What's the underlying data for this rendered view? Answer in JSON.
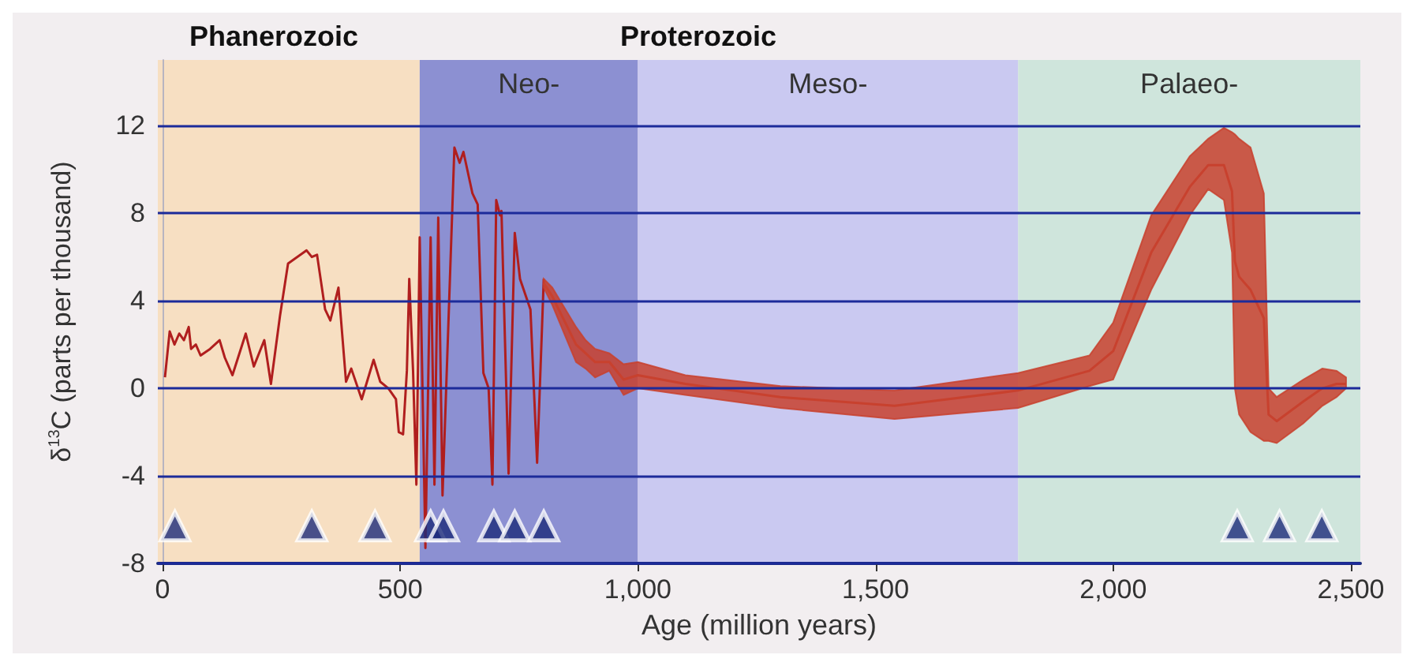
{
  "chart_data": {
    "type": "line",
    "xlabel": "Age (million years)",
    "ylabel": "δ$^{13}$C (parts per thousand)",
    "annotations": [
      "Phanerozoic",
      "Proterozoic"
    ],
    "xlim": [
      -10,
      2520
    ],
    "ylim": [
      -8,
      15
    ],
    "xticks": [
      0,
      500,
      {
        "value": 1000,
        "label": "1,000"
      },
      {
        "value": 1500,
        "label": "1,500"
      },
      {
        "value": 2000,
        "label": "2,000"
      },
      {
        "value": 2500,
        "label": "2,500"
      }
    ],
    "yticks": [
      -8,
      -4,
      0,
      4,
      8,
      12
    ],
    "grid": "y",
    "bands": [
      {
        "axis": "x",
        "from": -10,
        "to": 541,
        "color": "#f7dfc2"
      },
      {
        "axis": "x",
        "from": 541,
        "to": 1000,
        "label": "Neo-",
        "color": "#8c90d2"
      },
      {
        "axis": "x",
        "from": 1000,
        "to": 1800,
        "label": "Meso-",
        "color": "#cac9f1"
      },
      {
        "axis": "x",
        "from": 1800,
        "to": 2520,
        "label": "Palaeo-",
        "color": "#cfe5dc"
      }
    ],
    "series": [
      {
        "color": "#b01e1e",
        "marker": "none",
        "x": [
          5,
          15,
          25,
          35,
          45,
          55,
          60,
          70,
          80,
          100,
          120,
          131,
          147,
          175,
          192,
          214,
          228,
          247,
          264,
          303,
          314,
          325,
          342,
          353,
          370,
          386,
          397,
          419,
          444,
          458,
          475,
          491,
          497,
          506,
          514,
          519,
          527,
          534,
          541,
          553,
          564,
          572,
          580,
          589,
          614,
          625,
          633,
          652,
          663,
          675,
          686,
          694,
          702,
          710,
          713,
          728,
          741,
          752,
          774,
          788,
          802
        ],
        "values": [
          0.5,
          2.6,
          2.0,
          2.5,
          2.2,
          2.8,
          1.8,
          2.0,
          1.5,
          1.8,
          2.2,
          1.4,
          0.6,
          2.5,
          1.0,
          2.2,
          0.2,
          3.3,
          5.7,
          6.3,
          6.0,
          6.1,
          3.6,
          3.1,
          4.6,
          0.3,
          0.9,
          -0.5,
          1.3,
          0.3,
          0,
          -0.5,
          -2.0,
          -2.1,
          0.8,
          5.0,
          0.8,
          -4.4,
          6.9,
          -7.3,
          6.9,
          -4.4,
          7.8,
          -4.9,
          11.0,
          10.3,
          10.8,
          8.9,
          8.4,
          0.7,
          0,
          -4.4,
          8.6,
          7.9,
          8.1,
          -3.9,
          7.1,
          5.0,
          3.6,
          -3.4,
          5.0
        ]
      },
      {
        "type": "line",
        "color": "#c8412e",
        "x": [
          802,
          820,
          870,
          890,
          910,
          940,
          970,
          1000,
          1100,
          1300,
          1540,
          1800,
          1950,
          2000,
          2080,
          2161,
          2200,
          2233,
          2250,
          2256,
          2265,
          2289,
          2317,
          2327,
          2344,
          2400,
          2440,
          2470,
          2490
        ],
        "lower": [
          4.6,
          3.8,
          1.2,
          0.9,
          0.5,
          0.8,
          -0.3,
          0.0,
          -0.3,
          -0.9,
          -1.4,
          -0.9,
          0.1,
          0.4,
          4.5,
          7.9,
          9.1,
          8.6,
          6.2,
          0,
          -1.2,
          -2.0,
          -2.4,
          -2.4,
          -2.5,
          -1.6,
          -0.8,
          -0.4,
          0
        ],
        "upper": [
          5.0,
          4.6,
          2.8,
          2.2,
          1.8,
          1.6,
          1.1,
          1.2,
          0.6,
          0.1,
          -0.1,
          0.7,
          1.5,
          3.0,
          7.9,
          10.6,
          11.4,
          11.9,
          11.7,
          11.6,
          11.4,
          11.0,
          8.9,
          0,
          -0.4,
          0.4,
          0.9,
          0.8,
          0.5
        ],
        "values": [
          4.8,
          4.2,
          2.0,
          1.6,
          1.2,
          1.2,
          0.4,
          0.6,
          0.2,
          -0.4,
          -0.8,
          -0.1,
          0.8,
          1.7,
          6.2,
          9.2,
          10.2,
          10.2,
          9.0,
          5.8,
          5.1,
          4.5,
          3.2,
          -1.2,
          -1.5,
          -0.6,
          0,
          0.2,
          0.2
        ]
      },
      {
        "type": "scatter",
        "color": "#1c2b7a",
        "marker": "triangle",
        "x": [
          26,
          314,
          447,
          564,
          591,
          697,
          741,
          802,
          2261,
          2350,
          2439
        ],
        "values": [
          -6.3,
          -6.3,
          -6.3,
          -6.3,
          -6.3,
          -6.3,
          -6.3,
          -6.3,
          -6.3,
          -6.3,
          -6.3
        ]
      }
    ]
  }
}
